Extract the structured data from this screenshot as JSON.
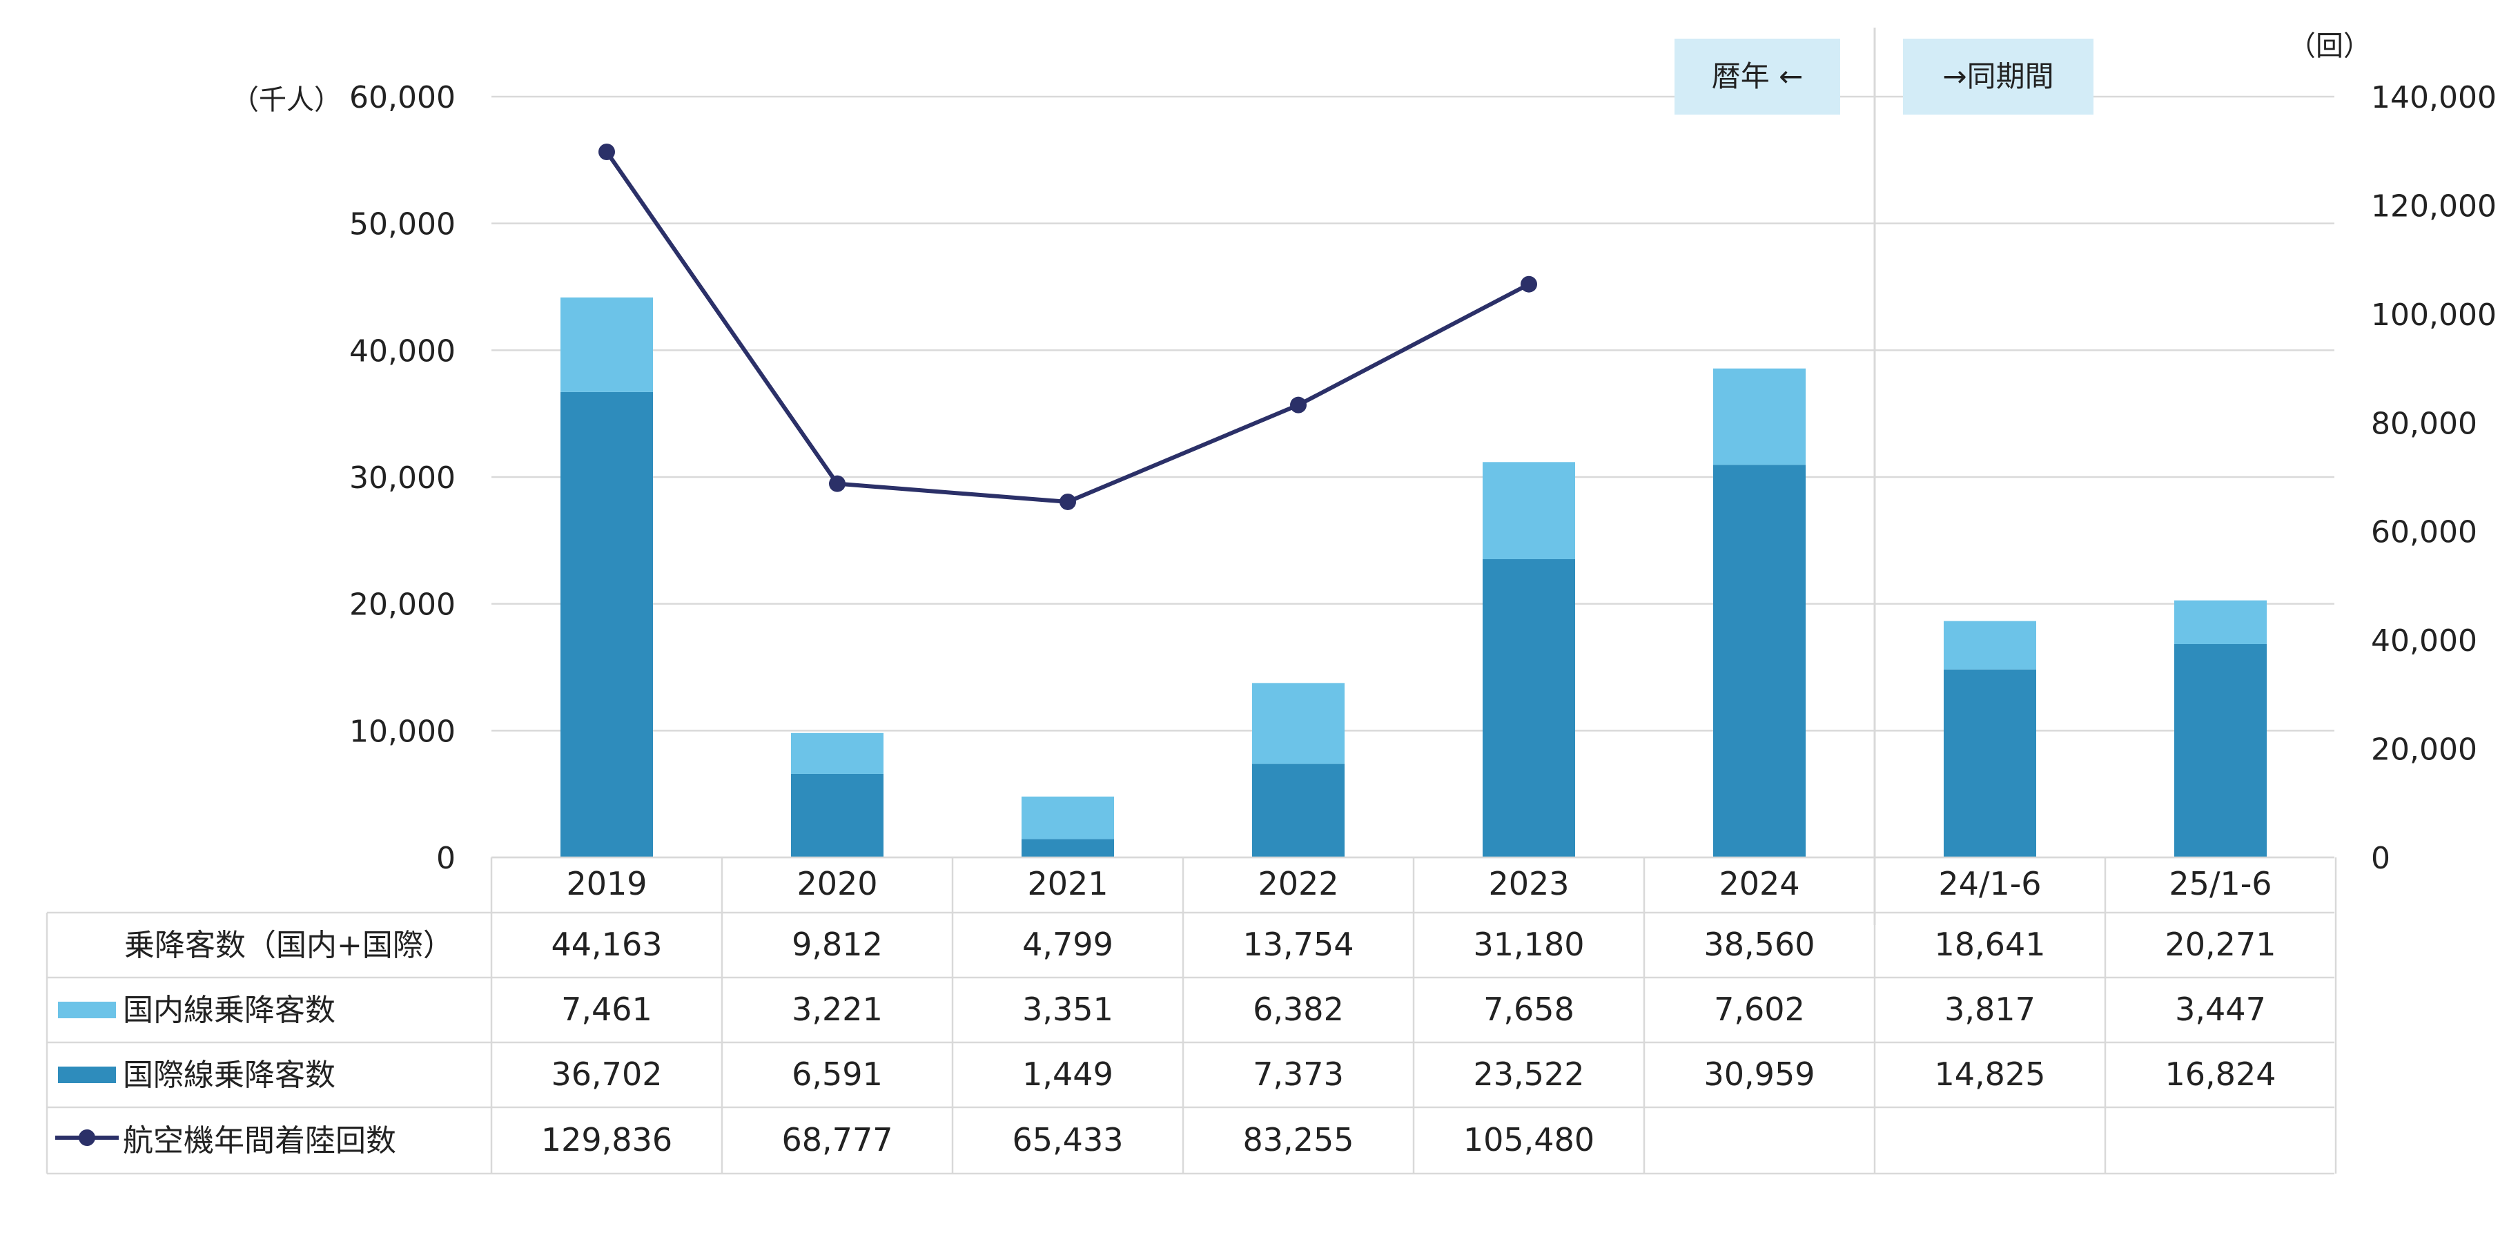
{
  "chart_data": {
    "type": "bar",
    "stacked": true,
    "categories": [
      "2019",
      "2020",
      "2021",
      "2022",
      "2023",
      "2024",
      "24/1-6",
      "25/1-6"
    ],
    "series": [
      {
        "name": "国際線乗降客数",
        "type": "bar",
        "axis": "left",
        "color": "#2e8cbc",
        "values": [
          36702,
          6591,
          1449,
          7373,
          23522,
          30959,
          14825,
          16824
        ],
        "labels": [
          "36,702",
          "6,591",
          "1,449",
          "7,373",
          "23,522",
          "30,959",
          "14,825",
          "16,824"
        ]
      },
      {
        "name": "国内線乗降客数",
        "type": "bar",
        "axis": "left",
        "color": "#6cc3e8",
        "values": [
          7461,
          3221,
          3351,
          6382,
          7658,
          7602,
          3817,
          3447
        ],
        "labels": [
          "7,461",
          "3,221",
          "3,351",
          "6,382",
          "7,658",
          "7,602",
          "3,817",
          "3,447"
        ]
      },
      {
        "name": "航空機年間着陸回数",
        "type": "line",
        "axis": "right",
        "color": "#2b3068",
        "values": [
          129836,
          68777,
          65433,
          83255,
          105480,
          null,
          null,
          null
        ],
        "labels": [
          "129,836",
          "68,777",
          "65,433",
          "83,255",
          "105,480",
          "",
          "",
          ""
        ]
      }
    ],
    "total_row": {
      "name": "乗降客数（国内+国際）",
      "values": [
        44163,
        9812,
        4799,
        13754,
        31180,
        38560,
        18641,
        20271
      ],
      "labels": [
        "44,163",
        "9,812",
        "4,799",
        "13,754",
        "31,180",
        "38,560",
        "18,641",
        "20,271"
      ]
    },
    "y_left": {
      "unit": "（千人）",
      "ylim": [
        0,
        60000
      ],
      "ticks": [
        0,
        10000,
        20000,
        30000,
        40000,
        50000,
        60000
      ],
      "tick_labels": [
        "0",
        "10,000",
        "20,000",
        "30,000",
        "40,000",
        "50,000",
        "60,000"
      ]
    },
    "y_right": {
      "unit": "（回）",
      "ylim": [
        0,
        140000
      ],
      "ticks": [
        0,
        20000,
        40000,
        60000,
        80000,
        100000,
        120000,
        140000
      ],
      "tick_labels": [
        "0",
        "20,000",
        "40,000",
        "60,000",
        "80,000",
        "100,000",
        "120,000",
        "140,000"
      ]
    },
    "annotations": {
      "calendar_year": "暦年 ←",
      "same_period": "→同期間"
    },
    "grid": true
  }
}
